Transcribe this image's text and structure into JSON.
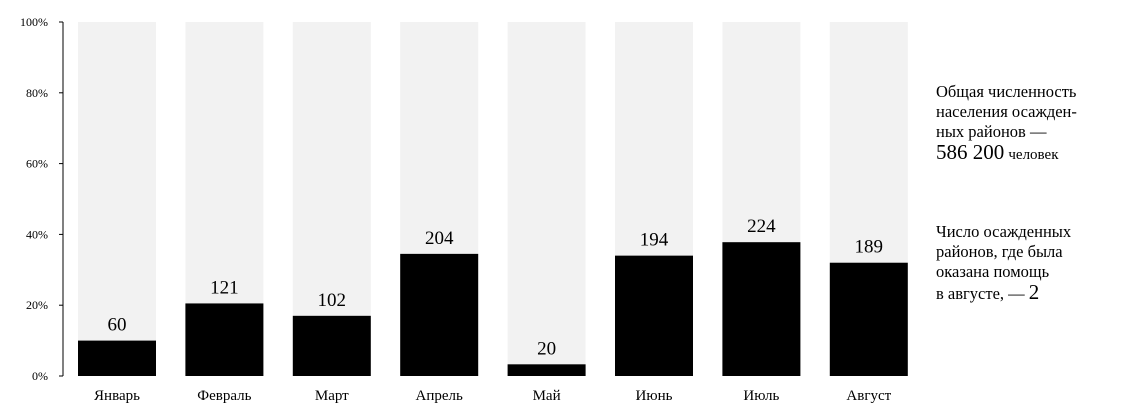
{
  "chart_data": {
    "type": "bar",
    "stacked_percent": true,
    "categories": [
      "Январь",
      "Февраль",
      "Март",
      "Апрель",
      "Май",
      "Июнь",
      "Июль",
      "Август"
    ],
    "values": [
      60,
      121,
      102,
      204,
      20,
      194,
      224,
      189
    ],
    "shares": [
      0.1,
      0.205,
      0.17,
      0.345,
      0.033,
      0.34,
      0.378,
      0.32
    ],
    "y_ticks": [
      "0%",
      "20%",
      "40%",
      "60%",
      "80%",
      "100%"
    ],
    "ylim": [
      0,
      1
    ],
    "grid": false,
    "colors": {
      "bar": "#000000",
      "track": "#f2f2f2"
    }
  },
  "side_notes": {
    "total": {
      "line1": "Общая численность",
      "line2": "населения осажден-",
      "line3": "ных районов —",
      "number": "586 200",
      "unit": "человек"
    },
    "helped": {
      "line1": "Число осажденных",
      "line2": "районов, где была",
      "line3": "оказана помощь",
      "line4": "в августе, —",
      "number": "2"
    }
  }
}
